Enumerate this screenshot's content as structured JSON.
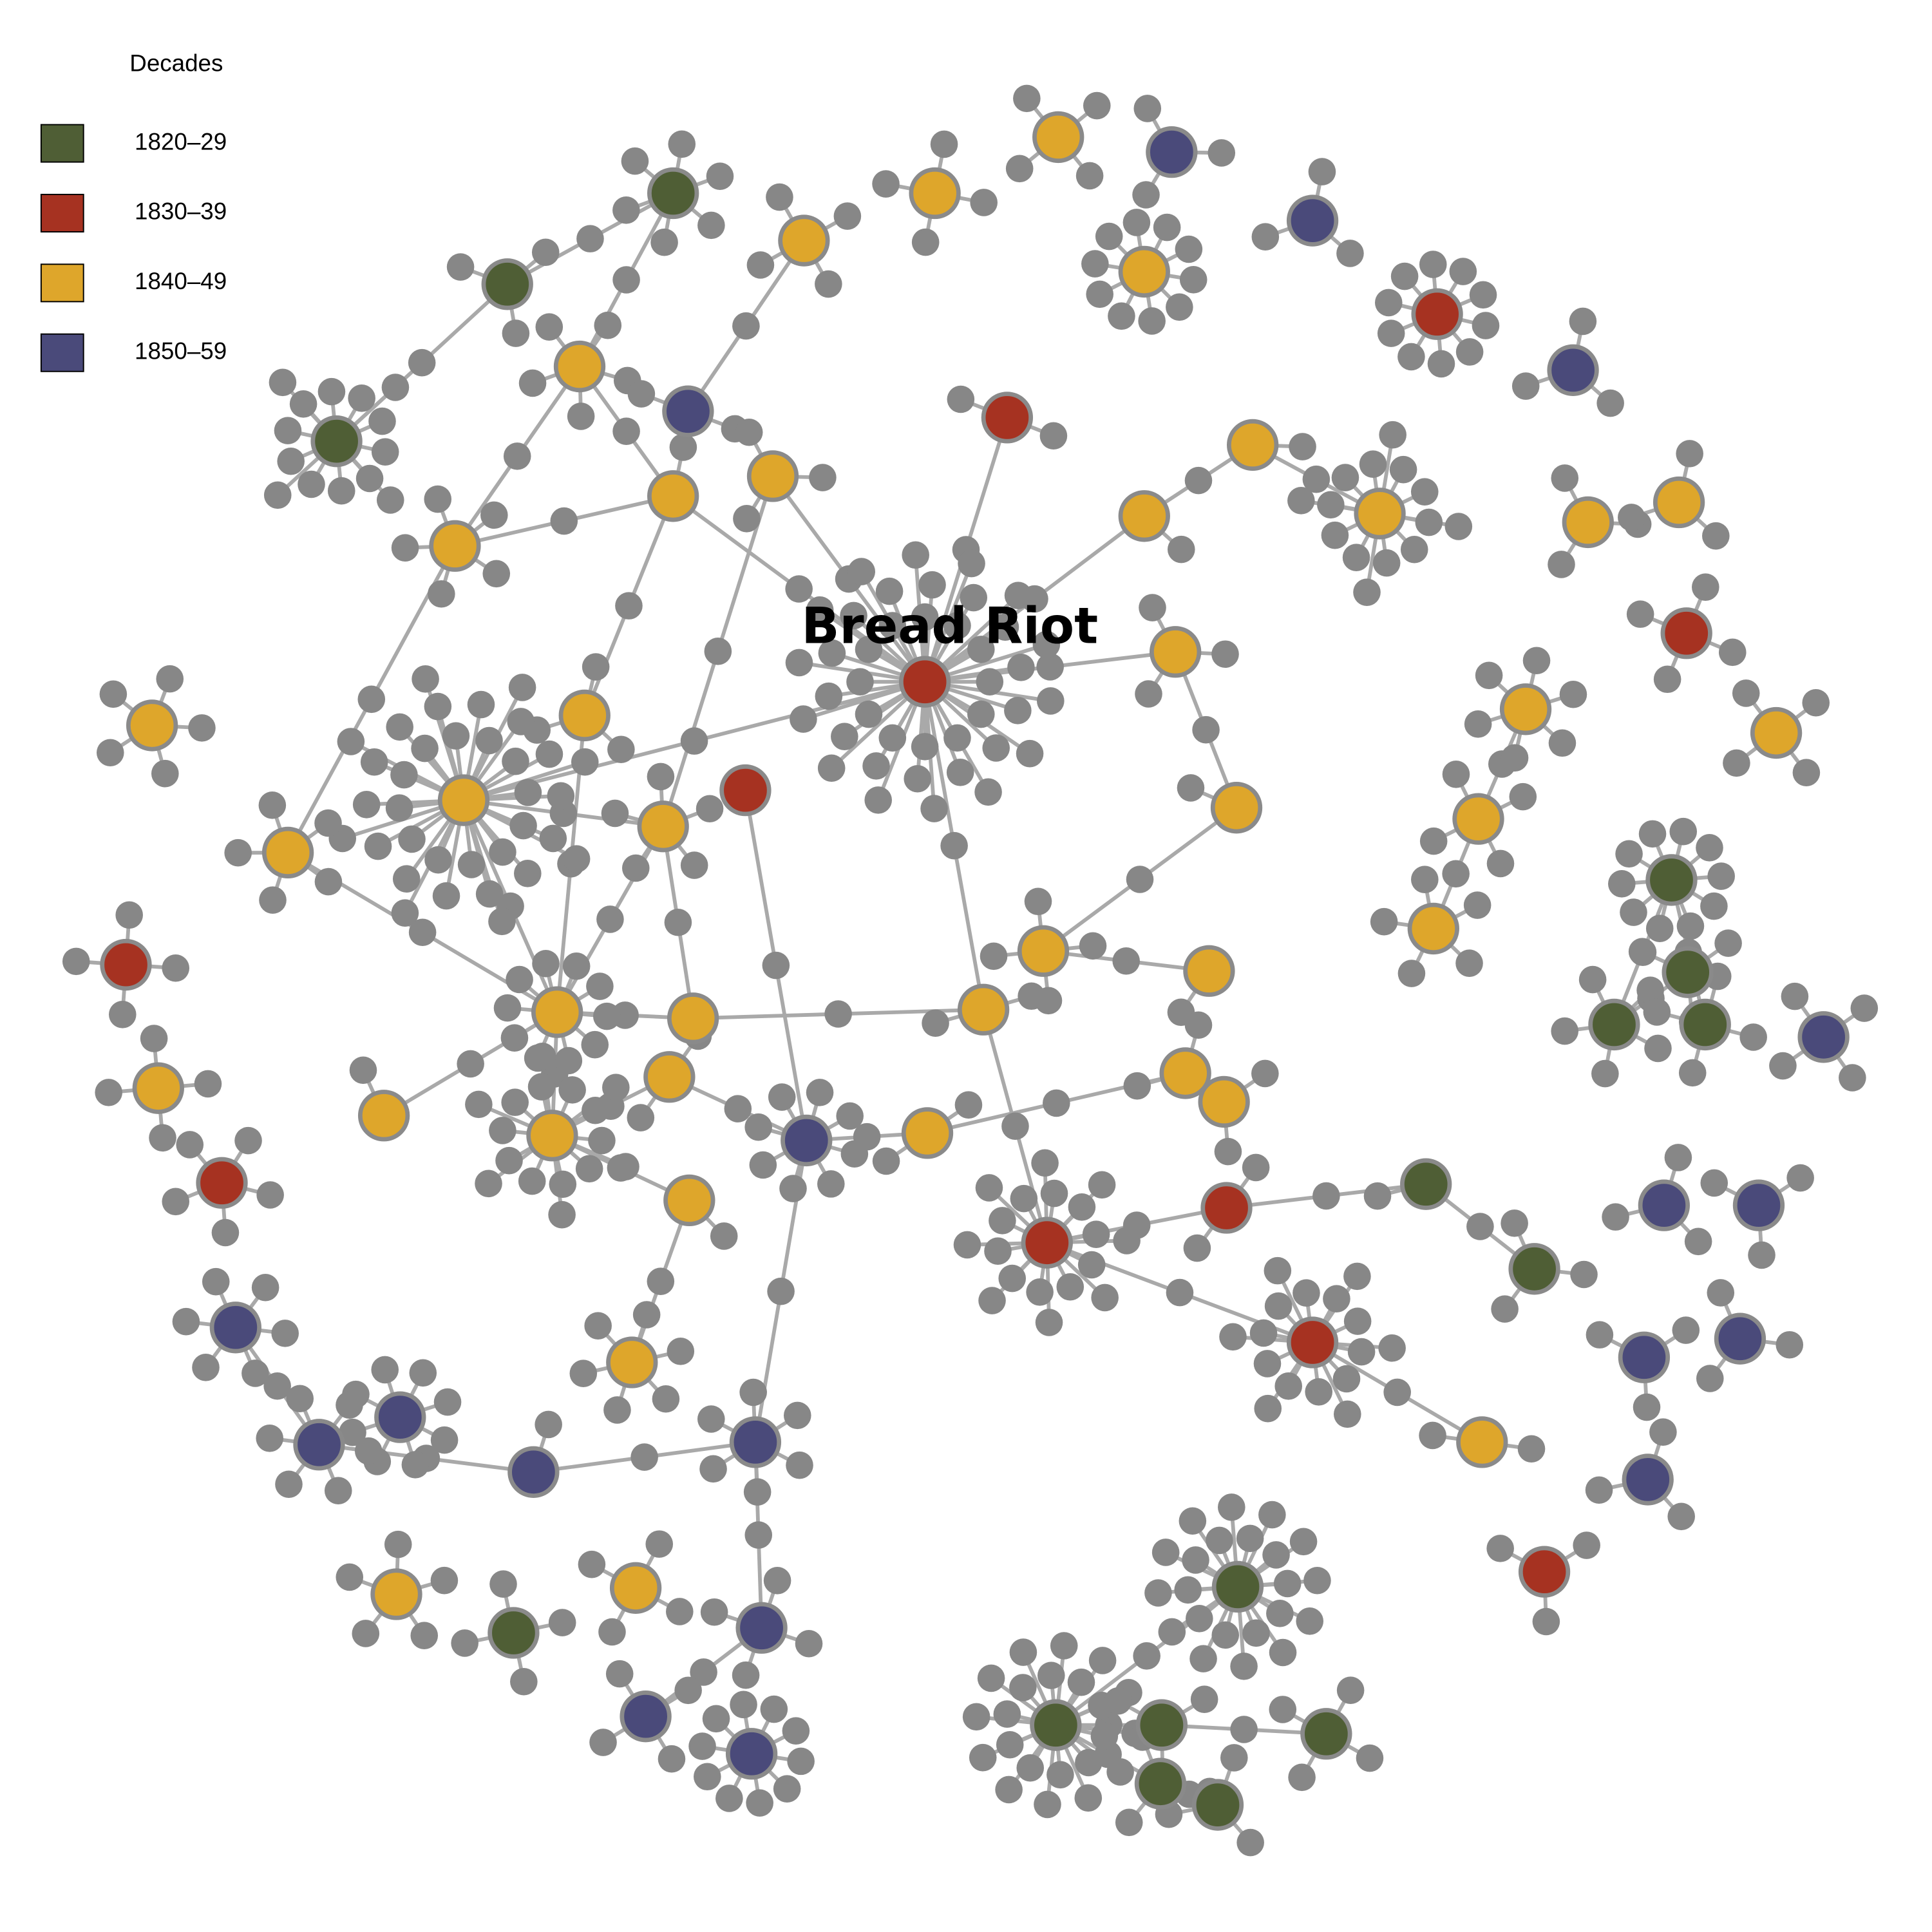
{
  "legend": {
    "title": "Decades",
    "items": [
      {
        "label": "1820–29",
        "color": "#4f5e35"
      },
      {
        "label": "1830–39",
        "color": "#a63221"
      },
      {
        "label": "1840–49",
        "color": "#dea62b"
      },
      {
        "label": "1850–59",
        "color": "#4a4a7a"
      }
    ]
  },
  "label": "Bread Riot"
}
